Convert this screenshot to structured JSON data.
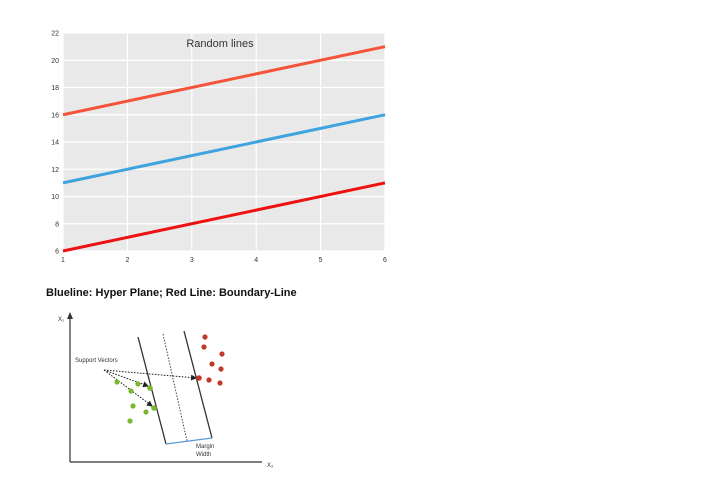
{
  "chart_data": {
    "type": "line",
    "title": "Random lines",
    "xlabel": "",
    "ylabel": "",
    "xlim": [
      1,
      6
    ],
    "ylim": [
      6,
      22
    ],
    "x_ticks": [
      "1",
      "2",
      "3",
      "4",
      "5",
      "6"
    ],
    "y_ticks": [
      "6",
      "8",
      "10",
      "12",
      "14",
      "16",
      "18",
      "20",
      "22"
    ],
    "grid": true,
    "background": "#e9e9e9",
    "series": [
      {
        "x": [
          1,
          6
        ],
        "y": [
          16,
          21
        ],
        "color": "#f5533a"
      },
      {
        "x": [
          1,
          6
        ],
        "y": [
          11,
          16
        ],
        "color": "#3ea3de"
      },
      {
        "x": [
          1,
          6
        ],
        "y": [
          6,
          11
        ],
        "color": "#ee1111"
      }
    ]
  },
  "caption": "Blueline: Hyper Plane; Red Line: Boundary-Line",
  "svm_diagram": {
    "x_axis_label": "X₂",
    "y_axis_label": "X₁",
    "support_vectors_label": "Support Vectors",
    "margin_label_line1": "Margin",
    "margin_label_line2": "Width",
    "class_a_color": "#7cb82f",
    "class_b_color": "#c0392b"
  }
}
